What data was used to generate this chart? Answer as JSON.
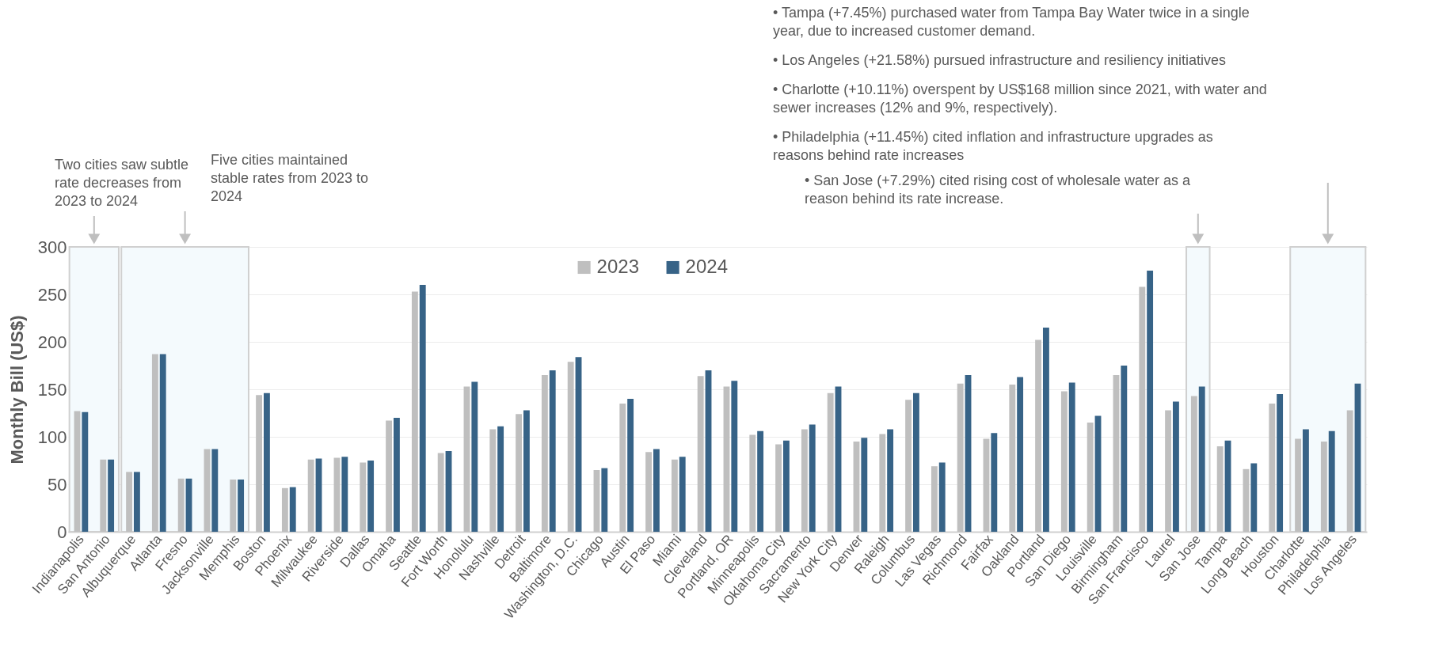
{
  "chart_data": {
    "type": "bar",
    "ylabel": "Monthly Bill (US$)",
    "categories": [
      "Indianapolis",
      "San Antonio",
      "Albuquerque",
      "Atlanta",
      "Fresno",
      "Jacksonville",
      "Memphis",
      "Boston",
      "Phoenix",
      "Milwaukee",
      "Riverside",
      "Dallas",
      "Omaha",
      "Seattle",
      "Fort Worth",
      "Honolulu",
      "Nashville",
      "Detroit",
      "Baltimore",
      "Washington, D.C.",
      "Chicago",
      "Austin",
      "El Paso",
      "Miami",
      "Cleveland",
      "Portland, OR",
      "Minneapolis",
      "Oklahoma City",
      "Sacramento",
      "New York City",
      "Denver",
      "Raleigh",
      "Columbus",
      "Las Vegas",
      "Richmond",
      "Fairfax",
      "Oakland",
      "Portland",
      "San Diego",
      "Louisville",
      "Birmingham",
      "San Francisco",
      "Laurel",
      "San Jose",
      "Tampa",
      "Long Beach",
      "Houston",
      "Charlotte",
      "Philadelphia",
      "Los Angeles"
    ],
    "series": [
      {
        "name": "2023",
        "color": "#bfbfbf",
        "values": [
          127,
          76,
          63,
          187,
          56,
          87,
          55,
          144,
          46,
          76,
          78,
          73,
          117,
          253,
          83,
          153,
          108,
          124,
          165,
          179,
          65,
          135,
          84,
          76,
          164,
          153,
          102,
          92,
          108,
          146,
          95,
          103,
          139,
          69,
          156,
          98,
          155,
          202,
          148,
          115,
          165,
          258,
          128,
          143,
          90,
          66,
          135,
          98,
          95,
          128
        ]
      },
      {
        "name": "2024",
        "color": "#376387",
        "values": [
          126,
          76,
          63,
          187,
          56,
          87,
          55,
          146,
          47,
          77,
          79,
          75,
          120,
          260,
          85,
          158,
          111,
          128,
          170,
          184,
          67,
          140,
          87,
          79,
          170,
          159,
          106,
          96,
          113,
          153,
          99,
          108,
          146,
          73,
          165,
          104,
          163,
          215,
          157,
          122,
          175,
          275,
          137,
          153,
          96,
          72,
          145,
          108,
          106,
          156
        ]
      }
    ],
    "ylim": [
      0,
      300
    ],
    "yticks": [
      0,
      50,
      100,
      150,
      200,
      250,
      300
    ],
    "grid": "y",
    "legend": "top",
    "bands": [
      {
        "axis": "x",
        "from": "Indianapolis",
        "to": "San Antonio",
        "label": "Two cities saw subtle rate decreases from 2023 to 2024",
        "color": "#f4fafd"
      },
      {
        "axis": "x",
        "from": "Albuquerque",
        "to": "Memphis",
        "label": "Five cities maintained stable rates from 2023 to 2024",
        "color": "#f4fafd"
      },
      {
        "axis": "x",
        "from": "San Jose",
        "to": "San Jose",
        "label": "• San Jose (+7.29%) cited rising cost of wholesale water as a reason behind its rate increase.",
        "color": "#f4fafd"
      },
      {
        "axis": "x",
        "from": "Charlotte",
        "to": "Los Angeles",
        "color": "#f4fafd"
      }
    ],
    "annotations": [
      "• Tampa (+7.45%) purchased water from Tampa Bay Water twice in a single year, due to increased customer demand.",
      "• Los Angeles (+21.58%) pursued infrastructure and resiliency initiatives",
      "• Charlotte (+10.11%) overspent by US$168 million since 2021, with water and sewer increases (12% and 9%, respectively).",
      "• Philadelphia (+11.45%) cited inflation and infrastructure upgrades as reasons behind rate increases"
    ]
  }
}
